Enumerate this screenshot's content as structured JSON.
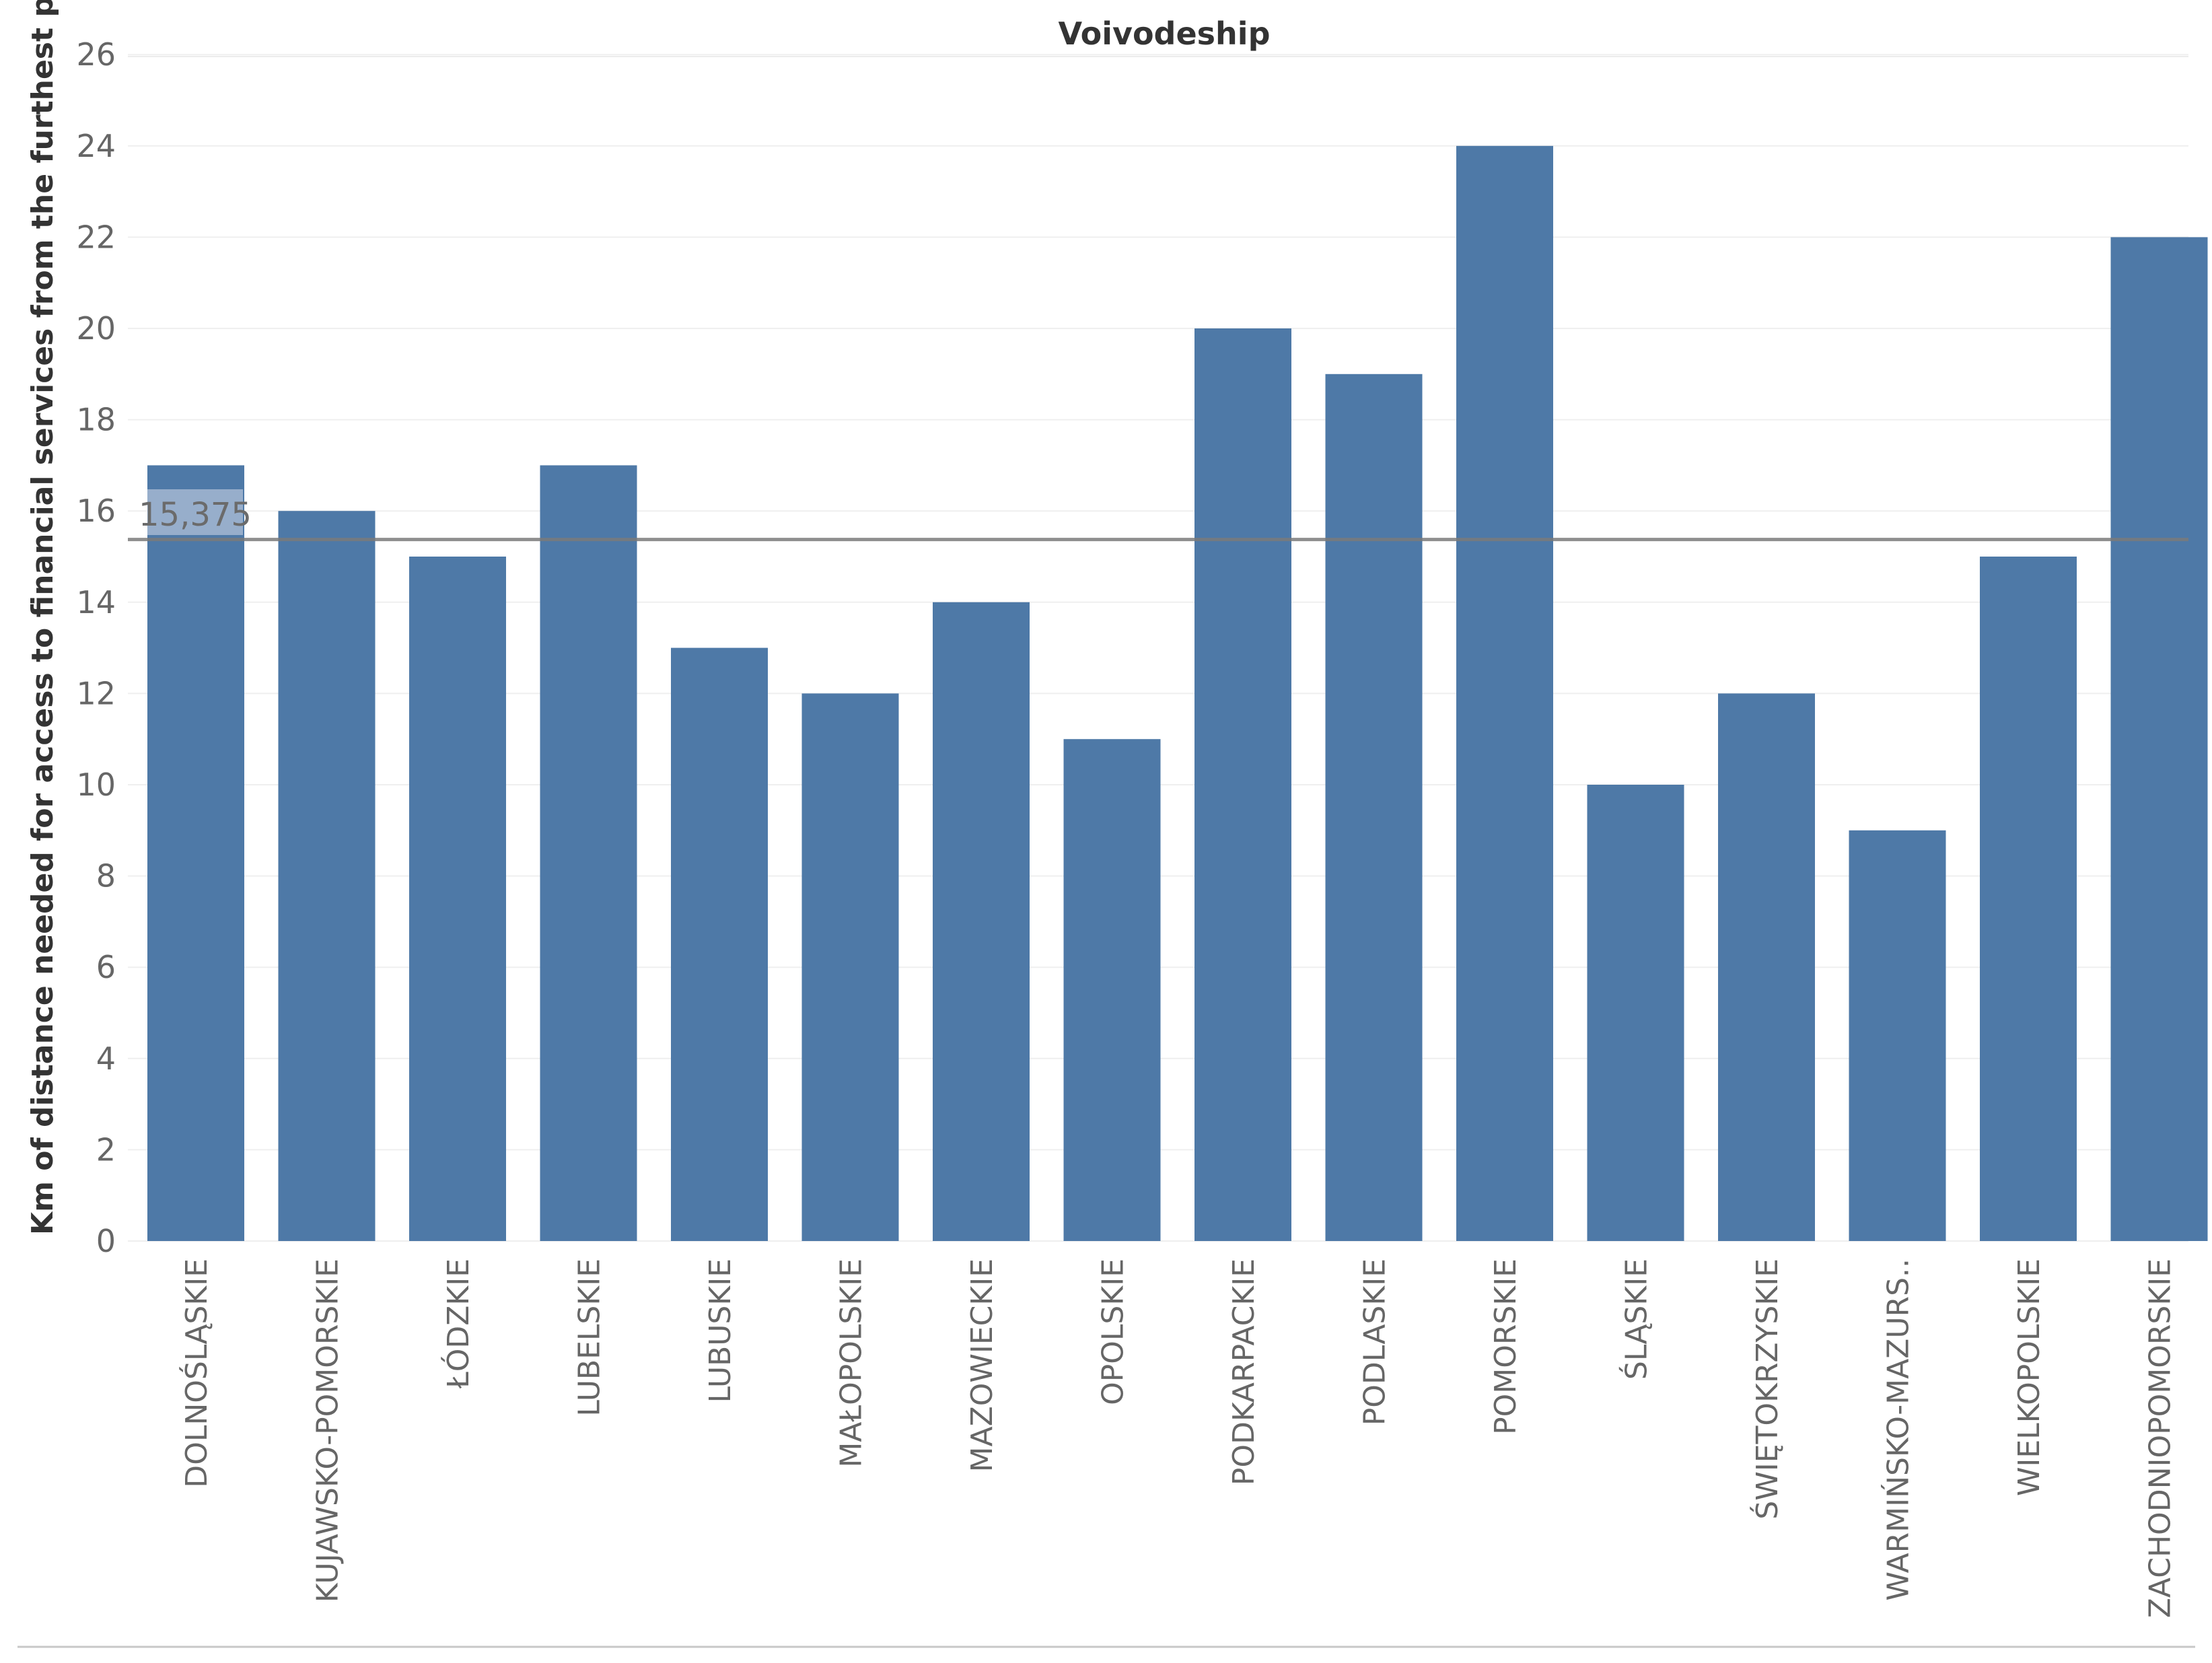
{
  "chart_data": {
    "type": "bar",
    "title": "Voivodeship",
    "ylabel": "Km of distance needed for access to financial services from the furthest p..",
    "xlabel": "",
    "categories": [
      "DOLNOŚLĄSKIE",
      "KUJAWSKO-POMORSKIE",
      "ŁÓDZKIE",
      "LUBELSKIE",
      "LUBUSKIE",
      "MAŁOPOLSKIE",
      "MAZOWIECKIE",
      "OPOLSKIE",
      "PODKARPACKIE",
      "PODLASKIE",
      "POMORSKIE",
      "ŚLĄSKIE",
      "ŚWIĘTOKRZYSKIE",
      "WARMIŃSKO-MAZURS..",
      "WIELKOPOLSKIE",
      "ZACHODNIOPOMORSKIE"
    ],
    "values": [
      17,
      16,
      15,
      17,
      13,
      12,
      14,
      11,
      20,
      19,
      24,
      10,
      12,
      9,
      15,
      22
    ],
    "ylim": [
      0,
      26
    ],
    "yticks": [
      0,
      2,
      4,
      6,
      8,
      10,
      12,
      14,
      16,
      18,
      20,
      22,
      24,
      26
    ],
    "reference_line": {
      "value": 15.375,
      "label": "15,375"
    },
    "grid": true,
    "legend": "none",
    "bar_color": "#4e79a7",
    "reference_line_color": "#7a7a7a"
  }
}
